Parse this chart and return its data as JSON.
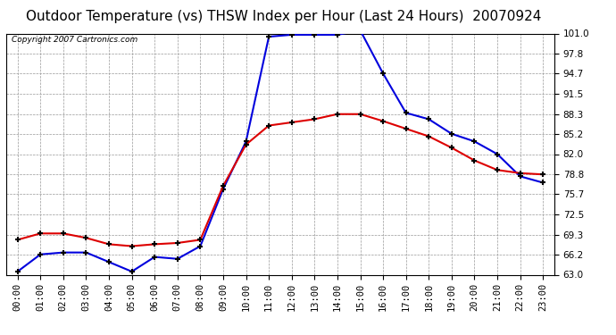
{
  "title": "Outdoor Temperature (vs) THSW Index per Hour (Last 24 Hours)  20070924",
  "copyright": "Copyright 2007 Cartronics.com",
  "hours": [
    0,
    1,
    2,
    3,
    4,
    5,
    6,
    7,
    8,
    9,
    10,
    11,
    12,
    13,
    14,
    15,
    16,
    17,
    18,
    19,
    20,
    21,
    22,
    23
  ],
  "temp": [
    68.5,
    69.5,
    69.5,
    68.8,
    67.8,
    67.5,
    67.8,
    68.0,
    68.5,
    77.0,
    83.5,
    86.5,
    87.0,
    87.5,
    88.3,
    88.3,
    87.2,
    86.0,
    84.8,
    83.0,
    81.0,
    79.5,
    79.0,
    78.8
  ],
  "thsw": [
    63.5,
    66.2,
    66.5,
    66.5,
    65.0,
    63.5,
    65.8,
    65.5,
    67.5,
    76.5,
    84.0,
    100.5,
    100.8,
    100.8,
    100.8,
    101.5,
    94.7,
    88.5,
    87.5,
    85.2,
    84.0,
    82.0,
    78.5,
    77.5
  ],
  "ylim": [
    63.0,
    101.0
  ],
  "yticks": [
    63.0,
    66.2,
    69.3,
    72.5,
    75.7,
    78.8,
    82.0,
    85.2,
    88.3,
    91.5,
    94.7,
    97.8,
    101.0
  ],
  "temp_color": "#dd0000",
  "thsw_color": "#0000dd",
  "bg_color": "#ffffff",
  "grid_color": "#999999",
  "title_fontsize": 11,
  "tick_fontsize": 7.5
}
